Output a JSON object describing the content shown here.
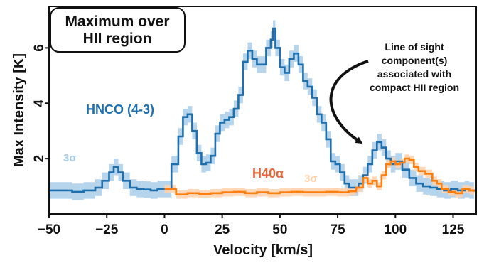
{
  "chart_data": {
    "type": "line",
    "title": "",
    "xlabel": "Velocity [km/s]",
    "ylabel": "Max Intensity [K]",
    "xlim": [
      -50,
      135
    ],
    "ylim": [
      0,
      7.5
    ],
    "xticks": [
      -50,
      -25,
      0,
      25,
      50,
      75,
      100,
      125
    ],
    "yticks": [
      2,
      4,
      6
    ],
    "grid": false,
    "box_label": [
      "Maximum over",
      "HII region"
    ],
    "annotation": [
      "Line of sight",
      "component(s)",
      "associated with",
      "compact HII region"
    ],
    "sigma_label": "3σ",
    "series": [
      {
        "name": "HNCO (4-3)",
        "color": "#1f6fad",
        "band_color": "#a9cde9",
        "x": [
          -50,
          -45,
          -40,
          -35,
          -30,
          -27,
          -24,
          -22,
          -20,
          -18,
          -15,
          -12,
          -9,
          -6,
          -3,
          0,
          3,
          6,
          8,
          10,
          12,
          14,
          16,
          18,
          20,
          22,
          24,
          26,
          28,
          30,
          32,
          34,
          36,
          38,
          40,
          42,
          44,
          46,
          47,
          48,
          50,
          52,
          54,
          56,
          58,
          60,
          62,
          64,
          66,
          68,
          70,
          72,
          74,
          76,
          78,
          80,
          82,
          84,
          86,
          88,
          90,
          92,
          94,
          96,
          98,
          100,
          103,
          106,
          109,
          112,
          115,
          118,
          121,
          124,
          127,
          130,
          132,
          134
        ],
        "values": [
          0.85,
          0.85,
          0.8,
          0.85,
          0.95,
          1.2,
          1.5,
          1.7,
          1.5,
          1.2,
          0.95,
          0.9,
          0.88,
          0.85,
          0.9,
          0.9,
          1.8,
          2.8,
          3.5,
          3.6,
          3.0,
          2.2,
          1.8,
          1.85,
          2.1,
          2.9,
          3.3,
          3.4,
          3.5,
          3.8,
          4.3,
          5.5,
          5.9,
          5.6,
          5.4,
          5.4,
          6.0,
          6.3,
          6.7,
          6.0,
          5.3,
          5.1,
          5.6,
          5.8,
          5.4,
          4.8,
          4.6,
          4.2,
          3.6,
          3.3,
          2.7,
          1.9,
          1.8,
          1.5,
          1.1,
          0.95,
          0.95,
          1.1,
          1.4,
          1.8,
          2.3,
          2.6,
          2.4,
          2.0,
          1.8,
          1.9,
          1.6,
          1.3,
          1.1,
          1.0,
          0.95,
          0.9,
          0.85,
          0.9,
          0.85,
          0.9,
          0.85,
          0.85
        ],
        "uncertainty": 0.3
      },
      {
        "name": "H40α",
        "color": "#ff7f0e",
        "band_color": "#ffd2ad",
        "label_color": "#e8643a",
        "x": [
          0,
          5,
          10,
          15,
          20,
          25,
          30,
          35,
          40,
          45,
          50,
          55,
          60,
          65,
          70,
          75,
          80,
          83,
          86,
          88,
          90,
          92,
          94,
          96,
          98,
          100,
          102,
          104,
          106,
          108,
          110,
          113,
          116,
          118,
          120,
          123,
          126,
          129,
          132,
          134
        ],
        "values": [
          0.9,
          0.7,
          0.75,
          0.72,
          0.75,
          0.78,
          0.8,
          0.75,
          0.78,
          0.75,
          0.78,
          0.8,
          0.78,
          0.78,
          0.8,
          0.78,
          0.82,
          0.95,
          1.3,
          1.1,
          1.2,
          1.0,
          1.4,
          1.8,
          1.9,
          1.8,
          1.85,
          2.0,
          1.95,
          1.7,
          1.55,
          1.45,
          1.2,
          1.1,
          0.9,
          0.8,
          0.75,
          0.9,
          0.85,
          0.8
        ],
        "uncertainty": 0.15
      }
    ]
  }
}
